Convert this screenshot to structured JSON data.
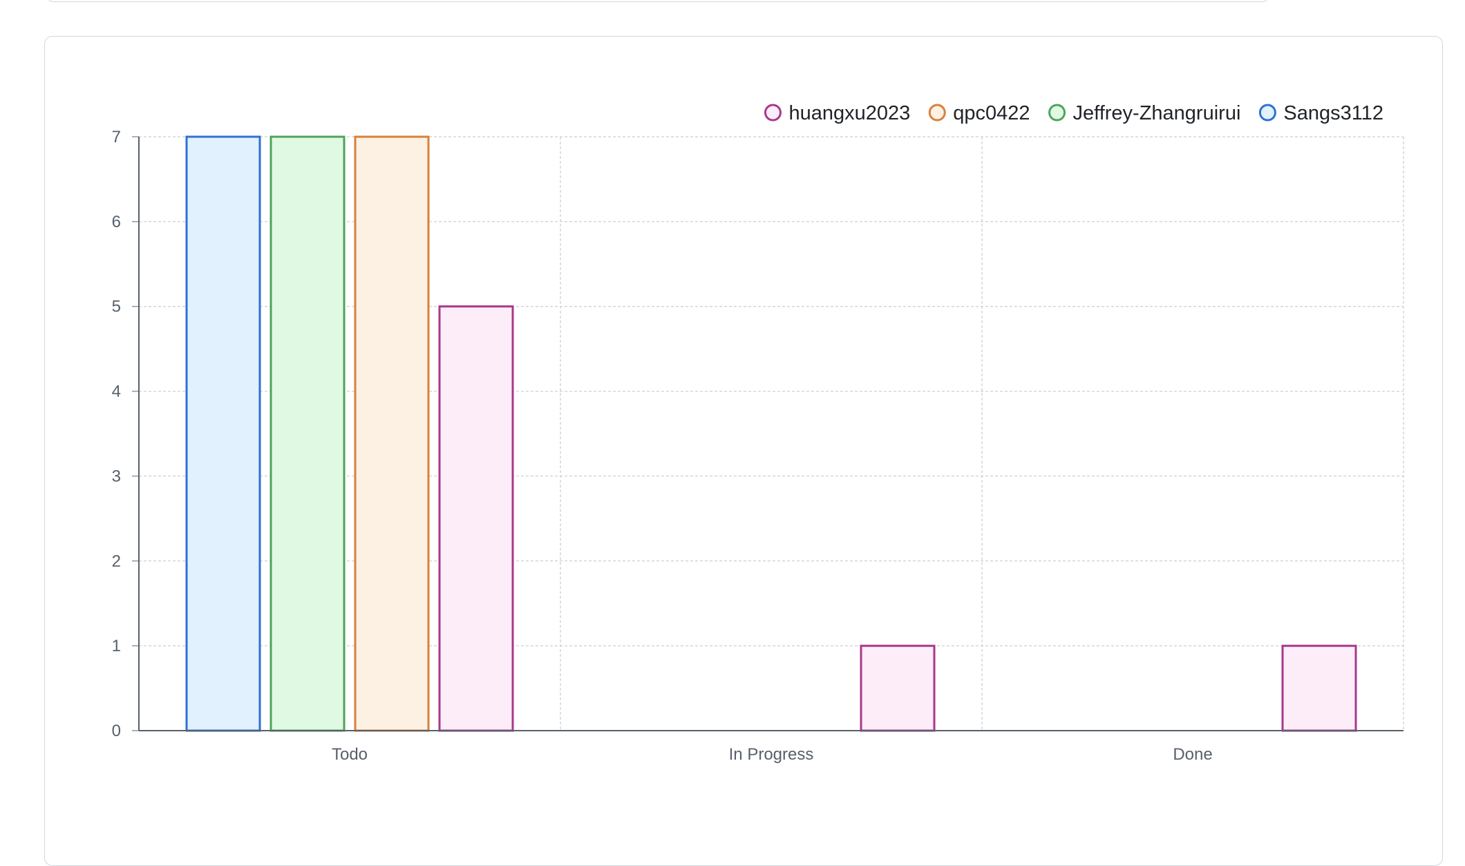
{
  "chart_data": {
    "type": "bar",
    "title": "",
    "xlabel": "",
    "ylabel": "",
    "categories": [
      "Todo",
      "In Progress",
      "Done"
    ],
    "ylim": [
      0,
      7
    ],
    "yticks": [
      "0",
      "1",
      "2",
      "3",
      "4",
      "5",
      "6",
      "7"
    ],
    "grid": true,
    "legend_position": "top-right",
    "series": [
      {
        "name": "Sangs3112",
        "values": [
          7,
          0,
          0
        ],
        "stroke": "#2f6fd8",
        "fill": "#e1f1fd"
      },
      {
        "name": "Jeffrey-Zhangruirui",
        "values": [
          7,
          0,
          0
        ],
        "stroke": "#4fa35a",
        "fill": "#e0f9e3"
      },
      {
        "name": "qpc0422",
        "values": [
          7,
          0,
          0
        ],
        "stroke": "#d9803a",
        "fill": "#fdf1e4"
      },
      {
        "name": "huangxu2023",
        "values": [
          5,
          1,
          1
        ],
        "stroke": "#a8388c",
        "fill": "#fcedf8"
      }
    ],
    "legend_order": [
      "huangxu2023",
      "qpc0422",
      "Jeffrey-Zhangruirui",
      "Sangs3112"
    ]
  }
}
